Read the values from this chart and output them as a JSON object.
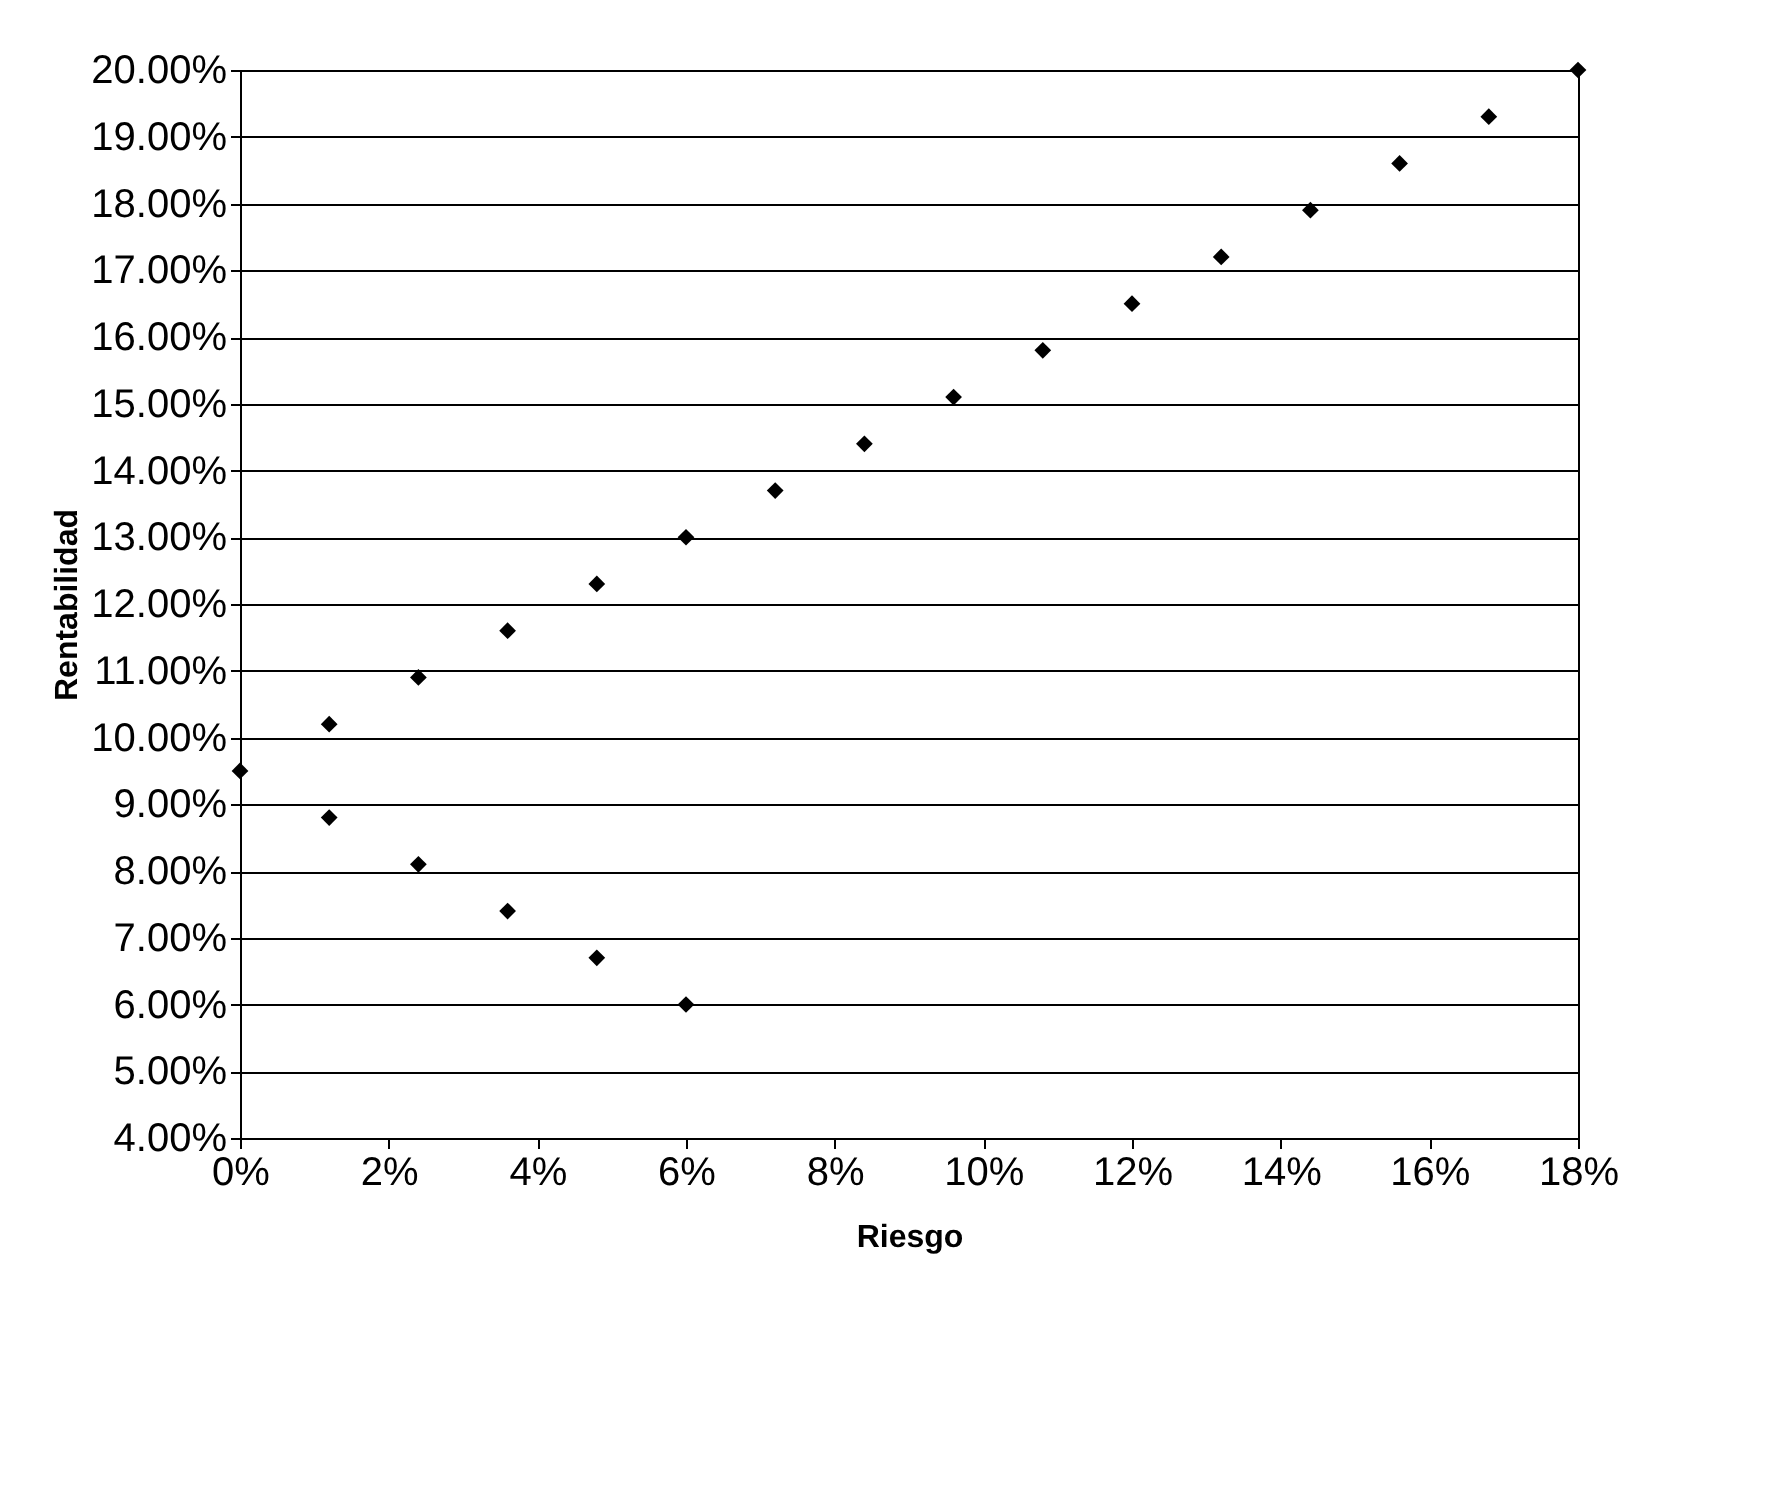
{
  "chart_data": {
    "type": "scatter",
    "xlabel": "Riesgo",
    "ylabel": "Rentabilidad",
    "x": [
      0,
      1.2,
      2.4,
      3.6,
      4.8,
      6,
      7.2,
      8.4,
      9.6,
      10.8,
      12,
      13.2,
      14.4,
      15.6,
      16.8,
      18,
      1.2,
      2.4,
      3.6,
      4.8,
      6
    ],
    "series": [
      {
        "color": "#000000",
        "values": [
          9.5,
          10.2,
          10.9,
          11.6,
          12.3,
          13,
          13.7,
          14.4,
          15.1,
          15.8,
          16.5,
          17.2,
          17.9,
          18.6,
          19.3,
          20,
          8.8,
          8.1,
          7.4,
          6.7,
          6.0
        ]
      }
    ],
    "xlim": [
      0,
      18
    ],
    "xticks": [
      {
        "value": 0,
        "label": "0%"
      },
      {
        "value": 2,
        "label": "2%"
      },
      {
        "value": 4,
        "label": "4%"
      },
      {
        "value": 6,
        "label": "6%"
      },
      {
        "value": 8,
        "label": "8%"
      },
      {
        "value": 10,
        "label": "10%"
      },
      {
        "value": 12,
        "label": "12%"
      },
      {
        "value": 14,
        "label": "14%"
      },
      {
        "value": 16,
        "label": "16%"
      },
      {
        "value": 18,
        "label": "18%"
      }
    ],
    "ylim": [
      4,
      20
    ],
    "yticks": [
      {
        "value": 4,
        "label": "4.00%"
      },
      {
        "value": 5,
        "label": "5.00%"
      },
      {
        "value": 6,
        "label": "6.00%"
      },
      {
        "value": 7,
        "label": "7.00%"
      },
      {
        "value": 8,
        "label": "8.00%"
      },
      {
        "value": 9,
        "label": "9.00%"
      },
      {
        "value": 10,
        "label": "10.00%"
      },
      {
        "value": 11,
        "label": "11.00%"
      },
      {
        "value": 12,
        "label": "12.00%"
      },
      {
        "value": 13,
        "label": "13.00%"
      },
      {
        "value": 14,
        "label": "14.00%"
      },
      {
        "value": 15,
        "label": "15.00%"
      },
      {
        "value": 16,
        "label": "16.00%"
      },
      {
        "value": 17,
        "label": "17.00%"
      },
      {
        "value": 18,
        "label": "18.00%"
      },
      {
        "value": 19,
        "label": "19.00%"
      },
      {
        "value": 20,
        "label": "20.00%"
      }
    ],
    "grid": "y",
    "marker": "diamond",
    "legend": false
  }
}
